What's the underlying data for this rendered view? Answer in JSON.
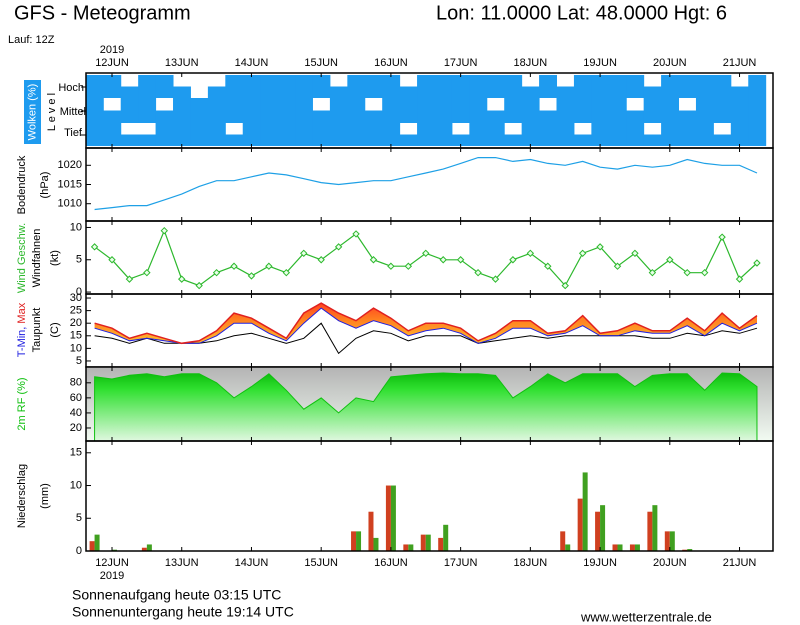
{
  "title": "GFS - Meteogramm",
  "location": "Lon: 11.0000 Lat: 48.0000 Hgt: 6",
  "run": "Lauf: 12Z",
  "year": "2019",
  "xlim": [
    11.627,
    21.48
  ],
  "xticks": [
    {
      "value": 12,
      "label": "12JUN"
    },
    {
      "value": 13,
      "label": "13JUN"
    },
    {
      "value": 14,
      "label": "14JUN"
    },
    {
      "value": 15,
      "label": "15JUN"
    },
    {
      "value": 16,
      "label": "16JUN"
    },
    {
      "value": 17,
      "label": "17JUN"
    },
    {
      "value": 18,
      "label": "18JUN"
    },
    {
      "value": 19,
      "label": "19JUN"
    },
    {
      "value": 20,
      "label": "20JUN"
    },
    {
      "value": 21,
      "label": "21JUN"
    }
  ],
  "sunrise": "Sonnenaufgang heute 03:15 UTC",
  "sunset": "Sonnenuntergang heute 19:14 UTC",
  "source": "www.wetterzentrale.de",
  "chart_data": [
    {
      "type": "cloud",
      "ylabel": "Wolken (%)",
      "ylabel2": "L e v e l",
      "color": "#1e9bef",
      "x": [
        11.75,
        12,
        12.25,
        12.5,
        12.75,
        13,
        13.25,
        13.5,
        13.75,
        14,
        14.25,
        14.5,
        14.75,
        15,
        15.25,
        15.5,
        15.75,
        16,
        16.25,
        16.5,
        16.75,
        17,
        17.25,
        17.5,
        17.75,
        18,
        18.25,
        18.5,
        18.75,
        19,
        19.25,
        19.5,
        19.75,
        20,
        20.25,
        20.5,
        20.75,
        21,
        21.25
      ],
      "series": [
        {
          "name": "Hoch",
          "values": [
            100,
            100,
            50,
            100,
            100,
            50,
            0,
            50,
            100,
            100,
            100,
            100,
            100,
            100,
            50,
            100,
            100,
            100,
            50,
            100,
            100,
            100,
            100,
            100,
            100,
            50,
            100,
            50,
            100,
            100,
            100,
            100,
            50,
            100,
            100,
            100,
            100,
            50,
            100
          ]
        },
        {
          "name": "Mittel",
          "values": [
            100,
            50,
            100,
            100,
            50,
            100,
            100,
            100,
            100,
            100,
            100,
            100,
            100,
            50,
            100,
            100,
            50,
            100,
            100,
            100,
            100,
            100,
            100,
            50,
            100,
            100,
            50,
            100,
            100,
            100,
            100,
            50,
            100,
            100,
            50,
            100,
            100,
            100,
            100
          ]
        },
        {
          "name": "Tief",
          "values": [
            100,
            100,
            50,
            50,
            100,
            100,
            100,
            100,
            50,
            100,
            100,
            100,
            100,
            100,
            100,
            100,
            100,
            100,
            50,
            100,
            100,
            50,
            100,
            100,
            50,
            100,
            100,
            100,
            50,
            100,
            100,
            100,
            50,
            100,
            100,
            100,
            50,
            100,
            100
          ]
        }
      ]
    },
    {
      "type": "line",
      "ylabel": "Bodendruck",
      "yunit": "(hPa)",
      "color": "#1ea0e6",
      "ylim": [
        1005.5,
        1024.5
      ],
      "yticks": [
        1010,
        1015,
        1020
      ],
      "x": [
        11.75,
        12,
        12.25,
        12.5,
        12.75,
        13,
        13.25,
        13.5,
        13.75,
        14,
        14.25,
        14.5,
        14.75,
        15,
        15.25,
        15.5,
        15.75,
        16,
        16.25,
        16.5,
        16.75,
        17,
        17.25,
        17.5,
        17.75,
        18,
        18.25,
        18.5,
        18.75,
        19,
        19.25,
        19.5,
        19.75,
        20,
        20.25,
        20.5,
        20.75,
        21,
        21.25
      ],
      "values": [
        1008.5,
        1009,
        1009.5,
        1009.5,
        1011,
        1012.5,
        1014.5,
        1016,
        1016,
        1017,
        1018,
        1017.5,
        1016.5,
        1015.5,
        1015,
        1015.5,
        1016,
        1016,
        1017,
        1018,
        1019,
        1020.5,
        1022,
        1022,
        1021,
        1021.5,
        1020.5,
        1020,
        1021,
        1019.5,
        1019,
        1020,
        1019.5,
        1020,
        1021.5,
        1020.5,
        1020,
        1020,
        1018
      ]
    },
    {
      "type": "line-marker",
      "ylabel": "Wind Geschw.",
      "ylabel2": "Windfahnen",
      "yunit": "(kt)",
      "color": "#2db82d",
      "ylim": [
        -0.3,
        11
      ],
      "yticks": [
        0,
        5,
        10
      ],
      "x": [
        11.75,
        12,
        12.25,
        12.5,
        12.75,
        13,
        13.25,
        13.5,
        13.75,
        14,
        14.25,
        14.5,
        14.75,
        15,
        15.25,
        15.5,
        15.75,
        16,
        16.25,
        16.5,
        16.75,
        17,
        17.25,
        17.5,
        17.75,
        18,
        18.25,
        18.5,
        18.75,
        19,
        19.25,
        19.5,
        19.75,
        20,
        20.25,
        20.5,
        20.75,
        21,
        21.25
      ],
      "values": [
        7,
        5,
        2,
        3,
        9.5,
        2,
        1,
        3,
        4,
        2.5,
        4,
        3,
        6,
        5,
        7,
        9,
        5,
        4,
        4,
        6,
        5,
        5,
        3,
        2,
        5,
        6,
        4,
        1,
        6,
        7,
        4,
        6,
        3,
        5,
        3,
        3,
        8.5,
        2,
        4.5
      ]
    },
    {
      "type": "temperature",
      "yunit": "(C)",
      "ylim": [
        2.6,
        31.6
      ],
      "yticks": [
        5,
        10,
        15,
        20,
        25,
        30
      ],
      "x": [
        11.75,
        12,
        12.25,
        12.5,
        12.75,
        13,
        13.25,
        13.5,
        13.75,
        14,
        14.25,
        14.5,
        14.75,
        15,
        15.25,
        15.5,
        15.75,
        16,
        16.25,
        16.5,
        16.75,
        17,
        17.25,
        17.5,
        17.75,
        18,
        18.25,
        18.5,
        18.75,
        19,
        19.25,
        19.5,
        19.75,
        20,
        20.25,
        20.5,
        20.75,
        21,
        21.25
      ],
      "series": [
        {
          "name": "T-Min,",
          "color": "#2020e0",
          "values": [
            18,
            16,
            13,
            14,
            13,
            12,
            12,
            15,
            20,
            20,
            16,
            13,
            20,
            26,
            21,
            18,
            21,
            19,
            15,
            17,
            18,
            16,
            12,
            14,
            18,
            18,
            15,
            16,
            19,
            15,
            15,
            17,
            16,
            16,
            19,
            15,
            20,
            17,
            20
          ]
        },
        {
          "name": "Max",
          "color": "#e02020",
          "values": [
            20,
            18,
            14,
            16,
            14,
            12,
            13,
            17,
            24,
            22,
            18,
            14,
            24,
            28,
            24,
            21,
            26,
            22,
            17,
            20,
            20,
            18,
            13,
            16,
            21,
            21,
            16,
            17,
            23,
            16,
            17,
            20,
            17,
            17,
            22,
            17,
            24,
            18,
            23
          ]
        },
        {
          "name": "Taupunkt",
          "color": "#000000",
          "values": [
            15,
            14,
            12,
            14,
            12,
            12,
            12,
            13,
            15,
            16,
            14,
            12,
            14,
            20,
            8,
            14,
            17,
            16,
            13,
            15,
            15,
            15,
            12,
            13,
            14,
            15,
            14,
            15,
            15,
            15,
            15,
            15,
            14,
            14,
            16,
            15,
            17,
            16,
            18
          ]
        }
      ]
    },
    {
      "type": "area",
      "ylabel": "2m RF (%)",
      "color": "#10c010",
      "ylim": [
        2.7,
        101
      ],
      "yticks": [
        20,
        40,
        60,
        80
      ],
      "x": [
        11.75,
        12,
        12.25,
        12.5,
        12.75,
        13,
        13.25,
        13.5,
        13.75,
        14,
        14.25,
        14.5,
        14.75,
        15,
        15.25,
        15.5,
        15.75,
        16,
        16.25,
        16.5,
        16.75,
        17,
        17.25,
        17.5,
        17.75,
        18,
        18.25,
        18.5,
        18.75,
        19,
        19.25,
        19.5,
        19.75,
        20,
        20.25,
        20.5,
        20.75,
        21,
        21.25
      ],
      "values": [
        88,
        85,
        90,
        92,
        88,
        92,
        92,
        80,
        60,
        75,
        92,
        70,
        45,
        60,
        40,
        60,
        55,
        88,
        90,
        92,
        93,
        92,
        92,
        90,
        60,
        75,
        92,
        80,
        92,
        92,
        92,
        75,
        90,
        92,
        92,
        70,
        93,
        92,
        75
      ]
    },
    {
      "type": "bar",
      "ylabel": "Niederschlag",
      "yunit": "(mm)",
      "ylim": [
        0,
        16.8
      ],
      "yticks": [
        0,
        5,
        10,
        15
      ],
      "x": [
        11.75,
        12,
        12.25,
        12.5,
        12.75,
        13,
        13.25,
        13.5,
        13.75,
        14,
        14.25,
        14.5,
        14.75,
        15,
        15.25,
        15.5,
        15.75,
        16,
        16.25,
        16.5,
        16.75,
        17,
        17.25,
        17.5,
        17.75,
        18,
        18.25,
        18.5,
        18.75,
        19,
        19.25,
        19.5,
        19.75,
        20,
        20.25,
        20.5,
        20.75,
        21,
        21.25
      ],
      "series": [
        {
          "color": "#d04020",
          "values": [
            1.5,
            0,
            0,
            0.5,
            0,
            0,
            0,
            0,
            0,
            0,
            0,
            0,
            0,
            0,
            0,
            3,
            6,
            10,
            1,
            2.5,
            2,
            0,
            0,
            0,
            0,
            0,
            0,
            3,
            8,
            6,
            1,
            1,
            6,
            3,
            0.2,
            0,
            0,
            0,
            0
          ]
        },
        {
          "color": "#40a020",
          "values": [
            2.5,
            0.2,
            0,
            1,
            0,
            0,
            0,
            0,
            0,
            0,
            0,
            0,
            0,
            0,
            0,
            3,
            2,
            10,
            1,
            2.5,
            4,
            0,
            0,
            0,
            0,
            0,
            0,
            1,
            12,
            7,
            1,
            1,
            7,
            3,
            0.3,
            0,
            0,
            0,
            0
          ]
        }
      ]
    }
  ]
}
